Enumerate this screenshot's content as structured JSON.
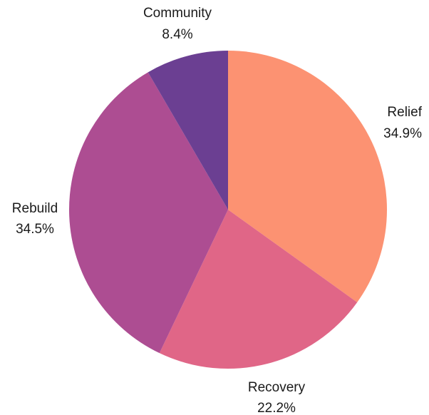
{
  "chart_data": {
    "type": "pie",
    "title": "",
    "start_angle_deg": 90,
    "direction": "clockwise",
    "slices": [
      {
        "label": "Relief",
        "value": 34.9,
        "display": "34.9%",
        "color": "#fc9272"
      },
      {
        "label": "Recovery",
        "value": 22.2,
        "display": "22.2%",
        "color": "#e06687"
      },
      {
        "label": "Rebuild",
        "value": 34.5,
        "display": "34.5%",
        "color": "#ad4d92"
      },
      {
        "label": "Community",
        "value": 8.4,
        "display": "8.4%",
        "color": "#6b3f92"
      }
    ]
  }
}
